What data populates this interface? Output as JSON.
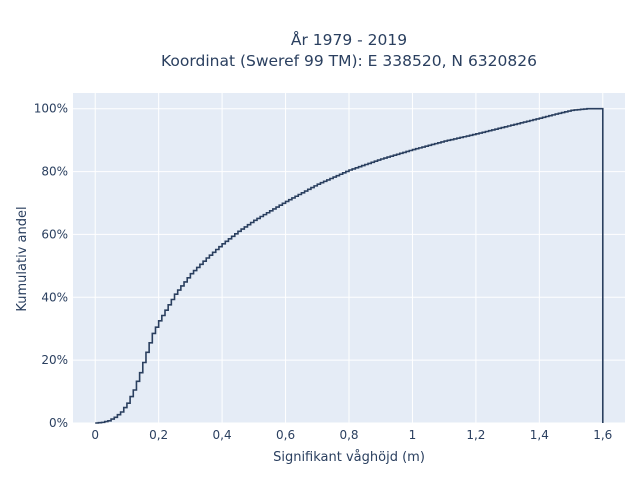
{
  "chart_data": {
    "type": "line",
    "line_shape": "step",
    "title_line1": "År 1979 - 2019",
    "title_line2": "Koordinat (Sweref 99 TM): E 338520, N 6320826",
    "xlabel": "Signifikant våghöjd (m)",
    "ylabel": "Kumulativ andel",
    "xlim": [
      -0.07,
      1.67
    ],
    "ylim": [
      0,
      1.05
    ],
    "x_ticks": [
      0,
      0.2,
      0.4,
      0.6,
      0.8,
      1.0,
      1.2,
      1.4,
      1.6
    ],
    "x_tick_labels": [
      "0",
      "0,2",
      "0,4",
      "0,6",
      "0,8",
      "1",
      "1,2",
      "1,4",
      "1,6"
    ],
    "y_ticks": [
      0,
      0.2,
      0.4,
      0.6,
      0.8,
      1.0
    ],
    "y_tick_labels": [
      "0%",
      "20%",
      "40%",
      "60%",
      "80%",
      "100%"
    ],
    "grid": true,
    "legend": "none",
    "colors": {
      "line": "#2a3f5f",
      "plot_bg": "#e5ecf6",
      "grid": "#ffffff"
    },
    "series": [
      {
        "x": [
          0.0,
          0.02,
          0.04,
          0.06,
          0.08,
          0.1,
          0.12,
          0.14,
          0.16,
          0.18,
          0.2,
          0.25,
          0.3,
          0.35,
          0.4,
          0.45,
          0.5,
          0.55,
          0.6,
          0.7,
          0.8,
          0.9,
          1.0,
          1.1,
          1.2,
          1.3,
          1.4,
          1.45,
          1.5,
          1.55,
          1.6
        ],
        "y": [
          0.0,
          0.002,
          0.007,
          0.018,
          0.035,
          0.063,
          0.105,
          0.16,
          0.225,
          0.285,
          0.325,
          0.41,
          0.475,
          0.525,
          0.57,
          0.61,
          0.645,
          0.675,
          0.705,
          0.76,
          0.805,
          0.84,
          0.87,
          0.897,
          0.92,
          0.945,
          0.97,
          0.983,
          0.995,
          1.0,
          1.0
        ]
      }
    ]
  }
}
